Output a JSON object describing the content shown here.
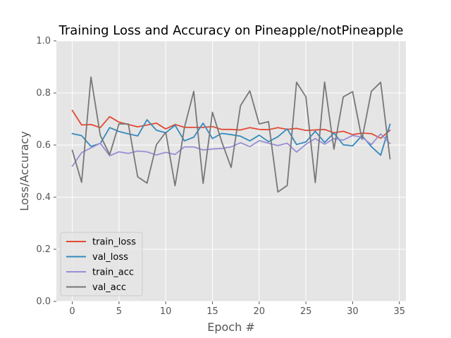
{
  "chart_data": {
    "type": "line",
    "title": "Training Loss and Accuracy on Pineapple/notPineapple",
    "xlabel": "Epoch #",
    "ylabel": "Loss/Accuracy",
    "xlim": [
      -1.7,
      35.7
    ],
    "ylim": [
      0.0,
      1.0
    ],
    "xticks": [
      0,
      5,
      10,
      15,
      20,
      25,
      30,
      35
    ],
    "yticks": [
      0.0,
      0.2,
      0.4,
      0.6,
      0.8,
      1.0
    ],
    "grid": true,
    "legend_position": "lower-left",
    "background": "#e5e5e5",
    "x": [
      0,
      1,
      2,
      3,
      4,
      5,
      6,
      7,
      8,
      9,
      10,
      11,
      12,
      13,
      14,
      15,
      16,
      17,
      18,
      19,
      20,
      21,
      22,
      23,
      24,
      25,
      26,
      27,
      28,
      29,
      30,
      31,
      32,
      33,
      34
    ],
    "series": [
      {
        "name": "train_loss",
        "color": "#e24a33",
        "values": [
          0.733,
          0.677,
          0.679,
          0.667,
          0.709,
          0.688,
          0.679,
          0.67,
          0.677,
          0.684,
          0.662,
          0.679,
          0.668,
          0.668,
          0.668,
          0.671,
          0.66,
          0.66,
          0.658,
          0.667,
          0.66,
          0.659,
          0.667,
          0.66,
          0.664,
          0.656,
          0.658,
          0.66,
          0.647,
          0.653,
          0.64,
          0.646,
          0.644,
          0.626,
          0.657
        ]
      },
      {
        "name": "val_loss",
        "color": "#348abd",
        "values": [
          0.644,
          0.636,
          0.595,
          0.606,
          0.667,
          0.652,
          0.643,
          0.635,
          0.697,
          0.657,
          0.647,
          0.676,
          0.616,
          0.63,
          0.684,
          0.625,
          0.645,
          0.64,
          0.634,
          0.616,
          0.638,
          0.613,
          0.632,
          0.662,
          0.602,
          0.612,
          0.653,
          0.61,
          0.646,
          0.601,
          0.597,
          0.636,
          0.594,
          0.561,
          0.68
        ]
      },
      {
        "name": "train_acc",
        "color": "#988ed5",
        "values": [
          0.519,
          0.571,
          0.589,
          0.607,
          0.559,
          0.574,
          0.568,
          0.577,
          0.574,
          0.562,
          0.572,
          0.564,
          0.593,
          0.593,
          0.581,
          0.585,
          0.587,
          0.593,
          0.609,
          0.594,
          0.617,
          0.607,
          0.598,
          0.607,
          0.573,
          0.603,
          0.625,
          0.603,
          0.625,
          0.619,
          0.637,
          0.63,
          0.602,
          0.643,
          0.606
        ]
      },
      {
        "name": "val_acc",
        "color": "#777777",
        "values": [
          0.58,
          0.457,
          0.861,
          0.637,
          0.563,
          0.681,
          0.681,
          0.478,
          0.454,
          0.601,
          0.649,
          0.444,
          0.667,
          0.806,
          0.453,
          0.726,
          0.612,
          0.514,
          0.751,
          0.808,
          0.681,
          0.69,
          0.42,
          0.445,
          0.841,
          0.785,
          0.456,
          0.842,
          0.584,
          0.785,
          0.805,
          0.622,
          0.806,
          0.841,
          0.547
        ]
      }
    ]
  }
}
